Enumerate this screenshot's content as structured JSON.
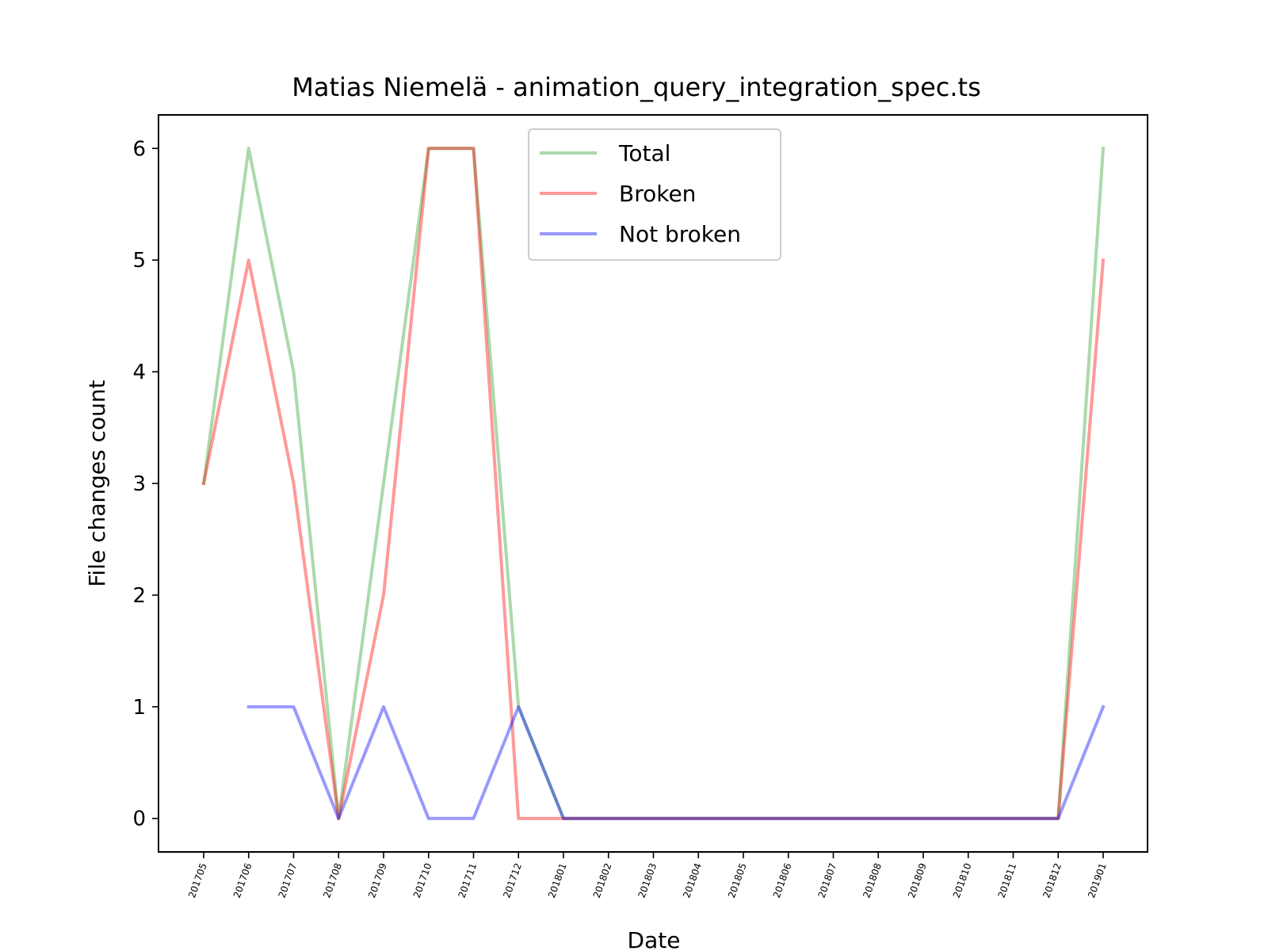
{
  "chart_data": {
    "type": "line",
    "title": "Matias Niemelä - animation_query_integration_spec.ts",
    "xlabel": "Date",
    "ylabel": "File changes count",
    "categories": [
      "201705",
      "201706",
      "201707",
      "201708",
      "201709",
      "201710",
      "201711",
      "201712",
      "201801",
      "201802",
      "201803",
      "201804",
      "201805",
      "201806",
      "201807",
      "201808",
      "201809",
      "201810",
      "201811",
      "201812",
      "201901"
    ],
    "yticks": [
      0,
      1,
      2,
      3,
      4,
      5,
      6
    ],
    "ylim": [
      -0.3,
      6.3
    ],
    "grid": false,
    "legend_position": "top-center",
    "series": [
      {
        "name": "Total",
        "color": "#2ca02c",
        "values": [
          3,
          6,
          4,
          0,
          3,
          6,
          6,
          1,
          0,
          0,
          0,
          0,
          0,
          0,
          0,
          0,
          0,
          0,
          0,
          0,
          6
        ]
      },
      {
        "name": "Broken",
        "color": "#ff0000",
        "values": [
          3,
          5,
          3,
          0,
          2,
          6,
          6,
          0,
          0,
          0,
          0,
          0,
          0,
          0,
          0,
          0,
          0,
          0,
          0,
          0,
          5
        ]
      },
      {
        "name": "Not broken",
        "color": "#0000ff",
        "values": [
          null,
          1,
          1,
          0,
          1,
          0,
          0,
          1,
          0,
          0,
          0,
          0,
          0,
          0,
          0,
          0,
          0,
          0,
          0,
          0,
          1
        ]
      }
    ]
  }
}
